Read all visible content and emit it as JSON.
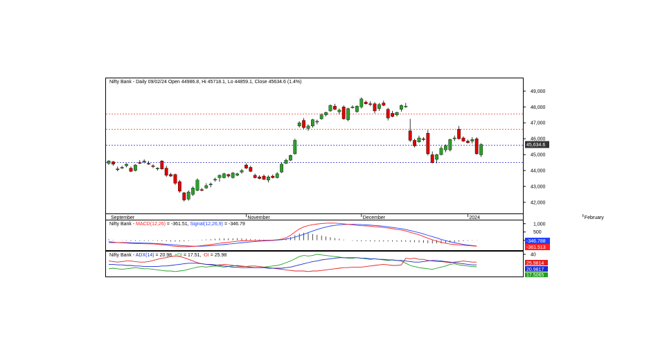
{
  "colors": {
    "up": "#2ca02c",
    "down": "#e00000",
    "resistance": "#e04020",
    "support": "#2020c0",
    "macd": "#ff2020",
    "signal": "#2040ff",
    "adx": "#1a2ad0",
    "plus_di": "#20a020",
    "minus_di": "#e02020",
    "frame": "#000000",
    "tag_close_bg": "#333333"
  },
  "chart_data": [
    {
      "type": "candlestick",
      "title": "Nifty Bank - Daily 09/02/24 Open 44986.8, Hi 45718.1, Lo 44859.1, Close 45634.6 (1.4%)",
      "ylim": [
        41300,
        49800
      ],
      "yticks": [
        42000,
        43000,
        44000,
        45000,
        46000,
        47000,
        48000,
        49000
      ],
      "ytick_labels": [
        "42,000",
        "43,000",
        "44,000",
        "45,000",
        "46,000",
        "47,000",
        "48,000",
        "49,000"
      ],
      "x_month_labels": [
        {
          "label": "September",
          "index": 0
        },
        {
          "label": "November",
          "index": 31
        },
        {
          "label": "December",
          "index": 57
        },
        {
          "label": "2024",
          "index": 81
        },
        {
          "label": "February",
          "index": 107
        }
      ],
      "reference_lines": [
        {
          "value": 47550,
          "role": "resistance"
        },
        {
          "value": 46600,
          "role": "resistance"
        },
        {
          "value": 45600,
          "role": "support"
        },
        {
          "value": 44500,
          "role": "support"
        }
      ],
      "close_label": "45,634.6",
      "close_value": 45634.6,
      "candles": [
        {
          "o": 44450,
          "h": 44650,
          "l": 44350,
          "c": 44600
        },
        {
          "o": 44550,
          "h": 44600,
          "l": 44300,
          "c": 44400
        },
        {
          "o": 44100,
          "h": 44250,
          "l": 43950,
          "c": 44050
        },
        {
          "o": 44150,
          "h": 44300,
          "l": 44100,
          "c": 44200
        },
        {
          "o": 44300,
          "h": 44450,
          "l": 44200,
          "c": 44400
        },
        {
          "o": 44150,
          "h": 44250,
          "l": 43900,
          "c": 43950
        },
        {
          "o": 44000,
          "h": 44400,
          "l": 43950,
          "c": 44350
        },
        {
          "o": 44500,
          "h": 44650,
          "l": 44400,
          "c": 44450
        },
        {
          "o": 44550,
          "h": 44700,
          "l": 44450,
          "c": 44600
        },
        {
          "o": 44450,
          "h": 44600,
          "l": 44350,
          "c": 44400
        },
        {
          "o": 44300,
          "h": 44400,
          "l": 44150,
          "c": 44250
        },
        {
          "o": 44100,
          "h": 44200,
          "l": 44000,
          "c": 44150
        },
        {
          "o": 44600,
          "h": 44650,
          "l": 44050,
          "c": 44100
        },
        {
          "o": 44150,
          "h": 44300,
          "l": 43600,
          "c": 43700
        },
        {
          "o": 43750,
          "h": 43850,
          "l": 43600,
          "c": 43650
        },
        {
          "o": 43750,
          "h": 43800,
          "l": 43100,
          "c": 43200
        },
        {
          "o": 43300,
          "h": 43400,
          "l": 42600,
          "c": 42700
        },
        {
          "o": 42600,
          "h": 42650,
          "l": 42050,
          "c": 42150
        },
        {
          "o": 42200,
          "h": 42750,
          "l": 42100,
          "c": 42650
        },
        {
          "o": 42500,
          "h": 43000,
          "l": 42400,
          "c": 42900
        },
        {
          "o": 42750,
          "h": 43500,
          "l": 42700,
          "c": 43400
        },
        {
          "o": 42800,
          "h": 42900,
          "l": 42700,
          "c": 42750
        },
        {
          "o": 42900,
          "h": 43200,
          "l": 42850,
          "c": 43050
        },
        {
          "o": 43100,
          "h": 43250,
          "l": 42950,
          "c": 43150
        },
        {
          "o": 43400,
          "h": 43550,
          "l": 43300,
          "c": 43450
        },
        {
          "o": 43550,
          "h": 43750,
          "l": 43300,
          "c": 43700
        },
        {
          "o": 43550,
          "h": 43850,
          "l": 43500,
          "c": 43800
        },
        {
          "o": 43750,
          "h": 43800,
          "l": 43550,
          "c": 43650
        },
        {
          "o": 43550,
          "h": 43900,
          "l": 43500,
          "c": 43850
        },
        {
          "o": 43700,
          "h": 43850,
          "l": 43650,
          "c": 43800
        },
        {
          "o": 43900,
          "h": 44100,
          "l": 43800,
          "c": 44000
        },
        {
          "o": 44350,
          "h": 44450,
          "l": 44100,
          "c": 44150
        },
        {
          "o": 44200,
          "h": 44300,
          "l": 43900,
          "c": 43950
        },
        {
          "o": 43700,
          "h": 43800,
          "l": 43500,
          "c": 43550
        },
        {
          "o": 43600,
          "h": 43700,
          "l": 43450,
          "c": 43500
        },
        {
          "o": 43650,
          "h": 43750,
          "l": 43400,
          "c": 43450
        },
        {
          "o": 43400,
          "h": 43700,
          "l": 43250,
          "c": 43600
        },
        {
          "o": 43650,
          "h": 43750,
          "l": 43500,
          "c": 43550
        },
        {
          "o": 43550,
          "h": 43900,
          "l": 43500,
          "c": 43800
        },
        {
          "o": 43900,
          "h": 44500,
          "l": 43850,
          "c": 44400
        },
        {
          "o": 44450,
          "h": 44750,
          "l": 44400,
          "c": 44650
        },
        {
          "o": 44650,
          "h": 45000,
          "l": 44600,
          "c": 44950
        },
        {
          "o": 45050,
          "h": 46000,
          "l": 45000,
          "c": 45900
        },
        {
          "o": 46800,
          "h": 47100,
          "l": 46700,
          "c": 47000
        },
        {
          "o": 47150,
          "h": 47300,
          "l": 46600,
          "c": 46700
        },
        {
          "o": 46650,
          "h": 46900,
          "l": 46500,
          "c": 46800
        },
        {
          "o": 46800,
          "h": 47250,
          "l": 46700,
          "c": 47200
        },
        {
          "o": 47050,
          "h": 47200,
          "l": 46900,
          "c": 47100
        },
        {
          "o": 47250,
          "h": 47600,
          "l": 47200,
          "c": 47500
        },
        {
          "o": 47500,
          "h": 47700,
          "l": 47400,
          "c": 47650
        },
        {
          "o": 47750,
          "h": 48150,
          "l": 47700,
          "c": 48100
        },
        {
          "o": 48050,
          "h": 48200,
          "l": 47800,
          "c": 47850
        },
        {
          "o": 47700,
          "h": 47900,
          "l": 47550,
          "c": 47800
        },
        {
          "o": 48000,
          "h": 48100,
          "l": 47200,
          "c": 47250
        },
        {
          "o": 47200,
          "h": 47950,
          "l": 47100,
          "c": 47900
        },
        {
          "o": 47950,
          "h": 48100,
          "l": 47900,
          "c": 48000
        },
        {
          "o": 47700,
          "h": 48100,
          "l": 47650,
          "c": 48050
        },
        {
          "o": 48000,
          "h": 48600,
          "l": 47900,
          "c": 48500
        },
        {
          "o": 48300,
          "h": 48400,
          "l": 48150,
          "c": 48200
        },
        {
          "o": 48200,
          "h": 48350,
          "l": 48050,
          "c": 48150
        },
        {
          "o": 48200,
          "h": 48300,
          "l": 47600,
          "c": 47750
        },
        {
          "o": 47900,
          "h": 48250,
          "l": 47750,
          "c": 48150
        },
        {
          "o": 48250,
          "h": 48400,
          "l": 48050,
          "c": 48100
        },
        {
          "o": 47850,
          "h": 47950,
          "l": 47150,
          "c": 47300
        },
        {
          "o": 47600,
          "h": 47750,
          "l": 47350,
          "c": 47400
        },
        {
          "o": 47500,
          "h": 47700,
          "l": 47400,
          "c": 47650
        },
        {
          "o": 47850,
          "h": 48150,
          "l": 47700,
          "c": 48100
        },
        {
          "o": 48000,
          "h": 48250,
          "l": 47950,
          "c": 48050
        },
        {
          "o": 46500,
          "h": 47250,
          "l": 45800,
          "c": 45900
        },
        {
          "o": 45900,
          "h": 46000,
          "l": 45450,
          "c": 45550
        },
        {
          "o": 45800,
          "h": 46200,
          "l": 45750,
          "c": 46050
        },
        {
          "o": 46000,
          "h": 46100,
          "l": 45850,
          "c": 45950
        },
        {
          "o": 46350,
          "h": 46550,
          "l": 44950,
          "c": 45050
        },
        {
          "o": 45000,
          "h": 45200,
          "l": 44450,
          "c": 44500
        },
        {
          "o": 44700,
          "h": 45050,
          "l": 44450,
          "c": 45000
        },
        {
          "o": 45000,
          "h": 45550,
          "l": 44950,
          "c": 45400
        },
        {
          "o": 45300,
          "h": 45650,
          "l": 45150,
          "c": 45550
        },
        {
          "o": 45300,
          "h": 46000,
          "l": 45200,
          "c": 45950
        },
        {
          "o": 46000,
          "h": 46200,
          "l": 45850,
          "c": 46050
        },
        {
          "o": 46600,
          "h": 46800,
          "l": 45950,
          "c": 46000
        },
        {
          "o": 46050,
          "h": 46150,
          "l": 45800,
          "c": 45850
        },
        {
          "o": 45850,
          "h": 45950,
          "l": 45700,
          "c": 45750
        },
        {
          "o": 45850,
          "h": 46100,
          "l": 45700,
          "c": 45950
        },
        {
          "o": 46000,
          "h": 46100,
          "l": 45000,
          "c": 45050
        },
        {
          "o": 44986.8,
          "h": 45718.1,
          "l": 44859.1,
          "c": 45634.6
        }
      ]
    },
    {
      "type": "line",
      "title_prefix": "Nifty Bank - ",
      "label_macd": "MACD(12,26)",
      "value_macd": " = -361.51, ",
      "label_signal": "Signal(12,26,9)",
      "value_signal": " = -346.79",
      "ylim": [
        -600,
        1200
      ],
      "yticks": [
        0,
        500,
        1000
      ],
      "ytick_labels": [
        "",
        "500",
        "1,000"
      ],
      "tag_signal": "-346.788",
      "tag_macd": "-361.513",
      "signal_last": -346.79,
      "macd_last": -361.51,
      "macd": [
        -80,
        -110,
        -135,
        -155,
        -170,
        -190,
        -200,
        -205,
        -210,
        -215,
        -220,
        -240,
        -270,
        -300,
        -335,
        -360,
        -380,
        -395,
        -385,
        -370,
        -350,
        -320,
        -295,
        -260,
        -220,
        -180,
        -150,
        -120,
        -90,
        -60,
        -35,
        -30,
        -25,
        -15,
        -10,
        -5,
        0,
        10,
        30,
        70,
        150,
        300,
        500,
        680,
        810,
        890,
        940,
        980,
        1010,
        1030,
        1040,
        1035,
        1020,
        990,
        960,
        930,
        900,
        880,
        870,
        850,
        820,
        800,
        770,
        740,
        700,
        650,
        620,
        560,
        480,
        400,
        330,
        230,
        120,
        30,
        -50,
        -130,
        -180,
        -230,
        -260,
        -280,
        -300,
        -320,
        -340,
        -361.51
      ],
      "signal": [
        -140,
        -140,
        -138,
        -140,
        -145,
        -150,
        -158,
        -165,
        -172,
        -180,
        -190,
        -205,
        -220,
        -240,
        -260,
        -285,
        -310,
        -330,
        -345,
        -355,
        -360,
        -355,
        -345,
        -330,
        -310,
        -285,
        -260,
        -230,
        -205,
        -180,
        -150,
        -120,
        -100,
        -75,
        -55,
        -40,
        -25,
        -10,
        10,
        35,
        70,
        120,
        190,
        270,
        360,
        460,
        560,
        650,
        730,
        800,
        860,
        900,
        930,
        950,
        960,
        960,
        955,
        945,
        930,
        915,
        895,
        870,
        845,
        810,
        775,
        735,
        700,
        650,
        590,
        520,
        460,
        380,
        300,
        220,
        140,
        50,
        -20,
        -90,
        -150,
        -200,
        -250,
        -290,
        -320,
        -346.79
      ],
      "histogram": [
        60,
        30,
        3,
        -15,
        -25,
        -40,
        -42,
        -40,
        -38,
        -35,
        -30,
        -35,
        -50,
        -60,
        -75,
        -75,
        -70,
        -65,
        -40,
        -15,
        10,
        35,
        50,
        70,
        90,
        105,
        110,
        110,
        115,
        120,
        115,
        90,
        75,
        60,
        45,
        35,
        25,
        20,
        20,
        35,
        80,
        180,
        310,
        410,
        450,
        430,
        380,
        330,
        280,
        230,
        180,
        135,
        90,
        40,
        0,
        -30,
        -55,
        -65,
        -60,
        -65,
        -75,
        -70,
        -75,
        -70,
        -75,
        -85,
        -80,
        -90,
        -110,
        -120,
        -130,
        -150,
        -180,
        -190,
        -190,
        -180,
        -160,
        -140,
        -110,
        -80,
        -50,
        -30,
        -20,
        -14.72
      ]
    },
    {
      "type": "line",
      "title_prefix": "Nifty Bank - ",
      "label_adx": "ADX(14)",
      "value_adx": " = 20.98, ",
      "label_plus": "+DI",
      "value_plus": " = 17.51, ",
      "label_minus": "-DI",
      "value_minus": " = 25.98",
      "ylim": [
        0,
        45
      ],
      "yticks": [
        40
      ],
      "ytick_labels": [
        "40"
      ],
      "tag_minus": "25.9814",
      "tag_adx": "20.9817",
      "tag_plus": "17.5065",
      "adx": [
        22,
        22,
        21,
        21,
        20,
        20,
        19,
        19,
        18,
        18,
        18,
        18,
        19,
        19,
        20,
        21,
        22,
        23,
        24,
        24,
        24,
        23,
        22,
        22,
        21,
        20,
        19,
        18,
        17,
        17,
        16,
        16,
        16,
        16,
        16,
        16,
        15,
        15,
        15,
        15,
        16,
        17,
        19,
        21,
        23,
        25,
        27,
        28,
        30,
        31,
        32,
        33,
        34,
        34,
        34,
        34,
        34,
        33,
        33,
        32,
        32,
        31,
        31,
        30,
        30,
        29,
        29,
        28,
        27,
        26,
        26,
        27,
        28,
        29,
        29,
        28,
        27,
        26,
        25,
        24,
        23,
        22,
        21,
        20.98
      ],
      "plus_di": [
        14,
        15,
        14,
        13,
        14,
        15,
        16,
        15,
        14,
        14,
        13,
        12,
        11,
        10,
        10,
        9,
        10,
        11,
        13,
        15,
        17,
        18,
        17,
        18,
        19,
        18,
        17,
        18,
        19,
        20,
        19,
        18,
        17,
        16,
        16,
        17,
        18,
        19,
        20,
        22,
        25,
        28,
        32,
        36,
        38,
        37,
        38,
        40,
        39,
        38,
        37,
        36,
        35,
        34,
        33,
        33,
        34,
        33,
        32,
        31,
        32,
        31,
        30,
        29,
        30,
        29,
        28,
        24,
        20,
        18,
        16,
        15,
        14,
        13,
        15,
        17,
        19,
        22,
        23,
        21,
        20,
        19,
        18,
        17.51
      ],
      "minus_di": [
        28,
        27,
        26,
        27,
        28,
        28,
        27,
        26,
        26,
        27,
        29,
        31,
        33,
        34,
        36,
        37,
        36,
        34,
        31,
        28,
        25,
        23,
        22,
        21,
        20,
        21,
        22,
        21,
        20,
        19,
        18,
        18,
        19,
        19,
        18,
        17,
        16,
        15,
        14,
        13,
        12,
        11,
        10,
        10,
        10,
        9,
        10,
        10,
        11,
        12,
        13,
        14,
        15,
        16,
        16,
        17,
        17,
        17,
        18,
        19,
        20,
        21,
        22,
        21,
        20,
        20,
        21,
        33,
        32,
        33,
        31,
        31,
        29,
        28,
        27,
        27,
        26,
        25,
        26,
        27,
        28,
        27,
        26,
        25.98
      ]
    }
  ]
}
